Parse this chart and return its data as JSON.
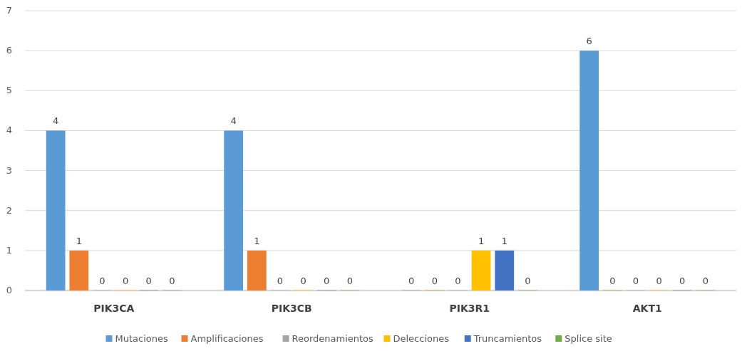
{
  "chart_data": {
    "type": "bar",
    "categories": [
      "PIK3CA",
      "PIK3CB",
      "PIK3R1",
      "AKT1"
    ],
    "series": [
      {
        "name": "Mutaciones",
        "color": "#5b9bd5",
        "values": [
          4,
          4,
          0,
          6
        ]
      },
      {
        "name": "Amplificaciones",
        "color": "#ed7d31",
        "values": [
          1,
          1,
          0,
          0
        ]
      },
      {
        "name": "Reordenamientos",
        "color": "#a5a5a5",
        "values": [
          0,
          0,
          0,
          0
        ]
      },
      {
        "name": "Delecciones",
        "color": "#ffc000",
        "values": [
          0,
          0,
          1,
          0
        ]
      },
      {
        "name": "Truncamientos",
        "color": "#4472c4",
        "values": [
          0,
          0,
          1,
          0
        ]
      },
      {
        "name": "Splice site",
        "color": "#70ad47",
        "values": [
          0,
          0,
          0,
          0
        ]
      }
    ],
    "ylim": [
      0,
      7
    ],
    "yticks": [
      0,
      1,
      2,
      3,
      4,
      5,
      6,
      7
    ],
    "grid": "y",
    "legend": "bottom",
    "data_labels": true
  }
}
